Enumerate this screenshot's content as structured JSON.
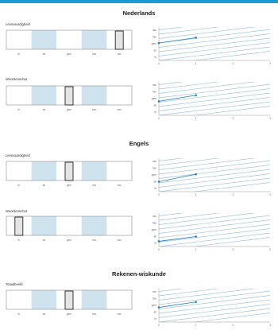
{
  "colors": {
    "accent": "#1e9bd7",
    "band": "#cfe3ef",
    "marker_fill": "#e4e4e4",
    "line": "#1e7fc4",
    "trend": "#9fc3d8"
  },
  "scale": {
    "categories": [
      "lb",
      "ab",
      "gem",
      "hav",
      "nav"
    ]
  },
  "graph": {
    "y_ticks": [
      "nav",
      "hav",
      "gem",
      "ab",
      "lb"
    ],
    "x_ticks": [
      "0",
      "1",
      "2",
      "3"
    ]
  },
  "sections": [
    {
      "title": "Nederlands",
      "rows": [
        {
          "label": "Leesvaardigheid",
          "position": 4,
          "trend_y": [
            2.1,
            2.9
          ]
        },
        {
          "label": "Woordenschat",
          "position": 2,
          "trend_y": [
            1.6,
            2.5
          ]
        }
      ]
    },
    {
      "title": "Engels",
      "rows": [
        {
          "label": "Leesvaardigheid",
          "position": 2,
          "trend_y": [
            1.0,
            2.1
          ]
        },
        {
          "label": "Woordenschat",
          "position": 0,
          "trend_y": [
            0.3,
            1.0
          ]
        }
      ]
    },
    {
      "title": "Rekenen-wiskunde",
      "rows": [
        {
          "label": "Totaalbeeld",
          "position": 2,
          "trend_y": [
            1.7,
            2.5
          ]
        }
      ]
    }
  ]
}
